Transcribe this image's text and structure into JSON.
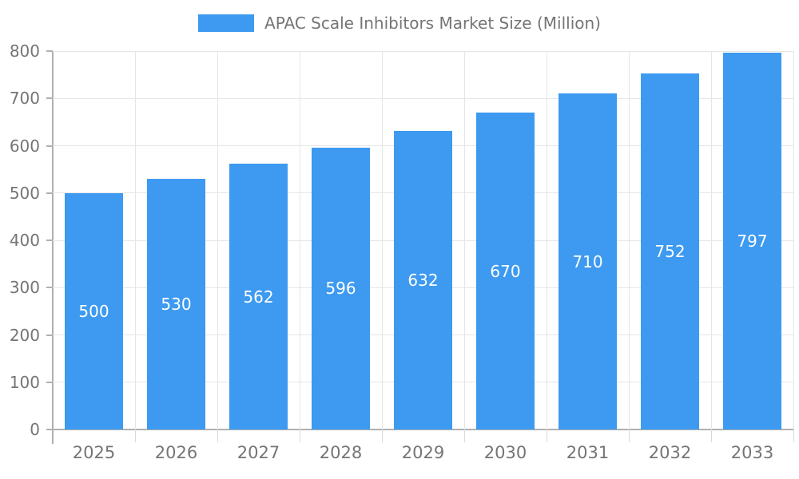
{
  "chart_data": {
    "type": "bar",
    "title": "APAC Scale Inhibitors Market Size (Million)",
    "legend_entries": [
      "APAC Scale Inhibitors Market Size (Million)"
    ],
    "legend_position": "top-center",
    "categories": [
      "2025",
      "2026",
      "2027",
      "2028",
      "2029",
      "2030",
      "2031",
      "2032",
      "2033"
    ],
    "values": [
      500,
      530,
      562,
      596,
      632,
      670,
      710,
      752,
      797
    ],
    "xlabel": "",
    "ylabel": "",
    "ylim": [
      0,
      800
    ],
    "ytick_step": 100,
    "ytick_labels": [
      "0",
      "100",
      "200",
      "300",
      "400",
      "500",
      "600",
      "700",
      "800"
    ],
    "grid": true,
    "value_labels_inside_bars": true,
    "colors": {
      "bar": "#3D9AF0",
      "value_label": "#ffffff",
      "axis_text": "#757575",
      "axis_line": "#b0b0b0",
      "gridline": "#e6e6e6",
      "x_tick": "#d9d9d9",
      "background": "#ffffff"
    }
  }
}
